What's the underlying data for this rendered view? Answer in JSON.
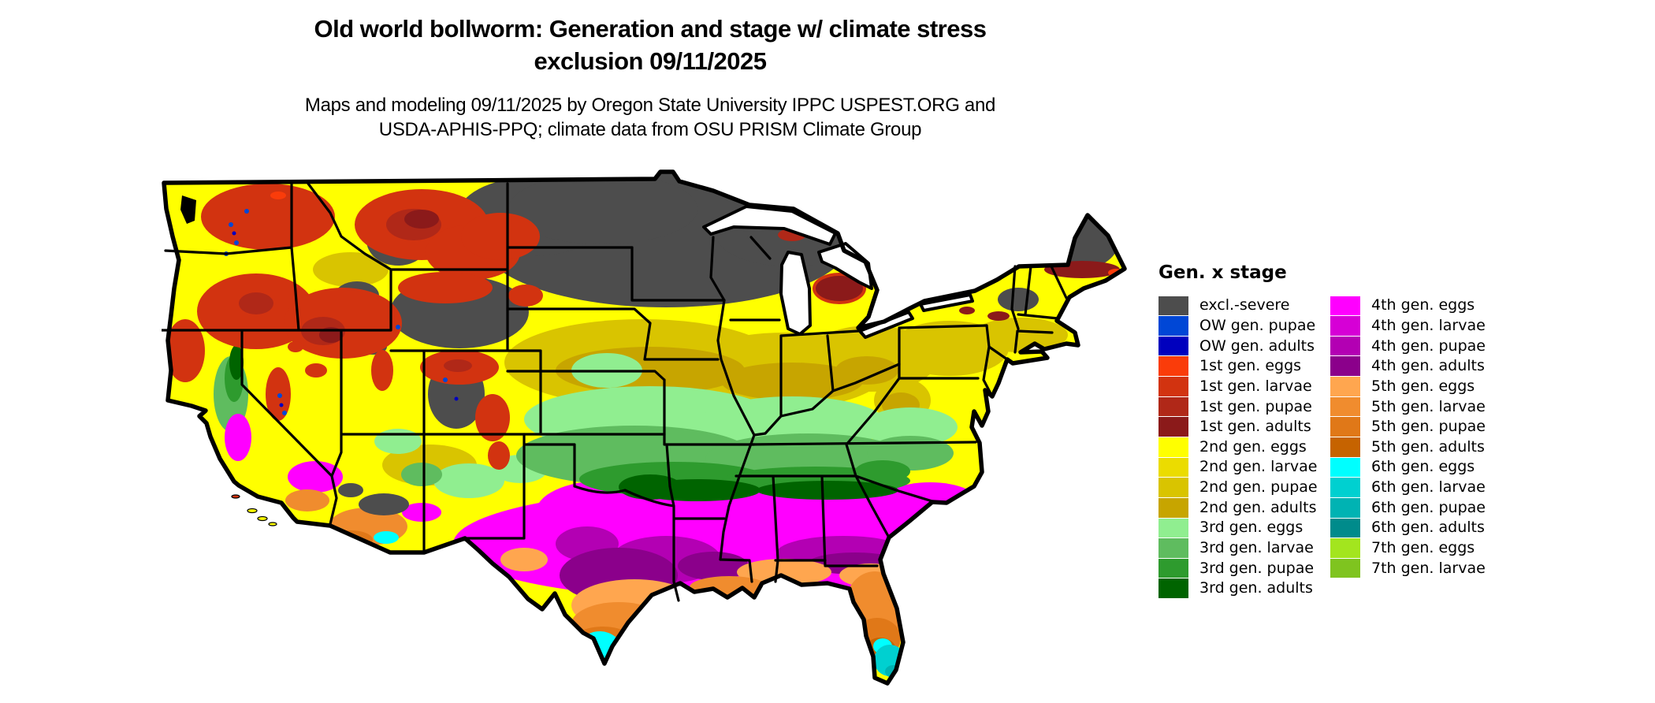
{
  "header": {
    "title_line1": "Old world bollworm: Generation and stage w/ climate stress",
    "title_line2": "exclusion 09/11/2025",
    "subtitle_line1": "Maps and modeling 09/11/2025 by Oregon State University IPPC USPEST.ORG and",
    "subtitle_line2": "USDA-APHIS-PPQ; climate data from OSU PRISM Climate Group"
  },
  "legend": {
    "title": "Gen. x stage",
    "columns": [
      {
        "items": [
          {
            "label": "excl.-severe",
            "color": "#4D4D4D"
          },
          {
            "label": "OW gen. pupae",
            "color": "#0047D6"
          },
          {
            "label": "OW gen. adults",
            "color": "#0000BE"
          },
          {
            "label": "1st gen. eggs",
            "color": "#FA3C0A"
          },
          {
            "label": "1st gen. larvae",
            "color": "#D23310"
          },
          {
            "label": "1st gen. pupae",
            "color": "#B02818"
          },
          {
            "label": "1st gen. adults",
            "color": "#8B1A1A"
          },
          {
            "label": "2nd gen. eggs",
            "color": "#FFFF00"
          },
          {
            "label": "2nd gen. larvae",
            "color": "#EBDC00"
          },
          {
            "label": "2nd gen. pupae",
            "color": "#D9C400"
          },
          {
            "label": "2nd gen. adults",
            "color": "#C7A500"
          },
          {
            "label": "3rd gen. eggs",
            "color": "#90EE90"
          },
          {
            "label": "3rd gen. larvae",
            "color": "#5FBC5F"
          },
          {
            "label": "3rd gen. pupae",
            "color": "#2E9B2E"
          },
          {
            "label": "3rd gen. adults",
            "color": "#006400"
          }
        ]
      },
      {
        "items": [
          {
            "label": "4th gen. eggs",
            "color": "#FF00FF"
          },
          {
            "label": "4th gen. larvae",
            "color": "#D600D6"
          },
          {
            "label": "4th gen. pupae",
            "color": "#B300B3"
          },
          {
            "label": "4th gen. adults",
            "color": "#8B008B"
          },
          {
            "label": "5th gen. eggs",
            "color": "#FFA64F"
          },
          {
            "label": "5th gen. larvae",
            "color": "#F08C2E"
          },
          {
            "label": "5th gen. pupae",
            "color": "#E07818"
          },
          {
            "label": "5th gen. adults",
            "color": "#C66300"
          },
          {
            "label": "6th gen. eggs",
            "color": "#00FFFF"
          },
          {
            "label": "6th gen. larvae",
            "color": "#00D0D0"
          },
          {
            "label": "6th gen. pupae",
            "color": "#00B3B3"
          },
          {
            "label": "6th gen. adults",
            "color": "#008B8B"
          },
          {
            "label": "7th gen. eggs",
            "color": "#A3E51E"
          },
          {
            "label": "7th gen. larvae",
            "color": "#7FC41F"
          }
        ]
      }
    ]
  },
  "map": {
    "palette": {
      "excl_severe": "#4D4D4D",
      "ow_pupae": "#0047D6",
      "ow_adults": "#0000BE",
      "g1_eggs": "#FA3C0A",
      "g1_larvae": "#D23310",
      "g1_pupae": "#B02818",
      "g1_adults": "#8B1A1A",
      "g2_eggs": "#FFFF00",
      "g2_larvae": "#EBDC00",
      "g2_pupae": "#D9C400",
      "g2_adults": "#C7A500",
      "g3_eggs": "#90EE90",
      "g3_larvae": "#5FBC5F",
      "g3_pupae": "#2E9B2E",
      "g3_adults": "#006400",
      "g4_eggs": "#FF00FF",
      "g4_larvae": "#D600D6",
      "g4_pupae": "#B300B3",
      "g4_adults": "#8B008B",
      "g5_eggs": "#FFA64F",
      "g5_larvae": "#F08C2E",
      "g5_pupae": "#E07818",
      "g5_adults": "#C66300",
      "g6_eggs": "#00FFFF",
      "g6_larvae": "#00D0D0",
      "g6_pupae": "#00B3B3",
      "g6_adults": "#008B8B",
      "g7_eggs": "#A3E51E",
      "g7_larvae": "#7FC41F",
      "water": "#FFFFFF",
      "border": "#000000"
    }
  }
}
